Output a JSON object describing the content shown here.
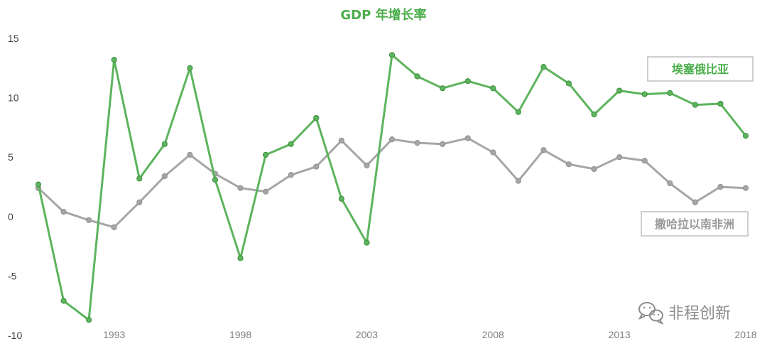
{
  "chart_data": {
    "type": "line",
    "title": "GDP 年增长率",
    "xlabel": "",
    "ylabel": "",
    "x": [
      1990,
      1991,
      1992,
      1993,
      1994,
      1995,
      1996,
      1997,
      1998,
      1999,
      2000,
      2001,
      2002,
      2003,
      2004,
      2005,
      2006,
      2007,
      2008,
      2009,
      2010,
      2011,
      2012,
      2013,
      2014,
      2015,
      2016,
      2017,
      2018
    ],
    "xticks": [
      "1993",
      "1998",
      "2003",
      "2008",
      "2013",
      "2018"
    ],
    "ylim": [
      -10,
      15
    ],
    "yticks": [
      "15",
      "10",
      "5",
      "0",
      "-5",
      "-10"
    ],
    "grid": false,
    "series": [
      {
        "name": "埃塞俄比亚",
        "color": "#5db45d",
        "values": [
          2.7,
          -7.1,
          -8.7,
          13.2,
          3.2,
          6.1,
          12.5,
          3.1,
          -3.5,
          5.2,
          6.1,
          8.3,
          1.5,
          -2.2,
          13.6,
          11.8,
          10.8,
          11.4,
          10.8,
          8.8,
          12.6,
          11.2,
          8.6,
          10.6,
          10.3,
          10.4,
          9.4,
          9.5,
          6.8
        ]
      },
      {
        "name": "撒哈拉以南非洲",
        "color": "#a6a6a6",
        "values": [
          2.4,
          0.4,
          -0.3,
          -0.9,
          1.2,
          3.4,
          5.2,
          3.6,
          2.4,
          2.1,
          3.5,
          4.2,
          6.4,
          4.3,
          6.5,
          6.2,
          6.1,
          6.6,
          5.4,
          3.0,
          5.6,
          4.4,
          4.0,
          5.0,
          4.7,
          2.8,
          1.2,
          2.5,
          2.4
        ]
      }
    ]
  },
  "watermark": {
    "icon": "wechat-icon",
    "text": "非程创新"
  }
}
